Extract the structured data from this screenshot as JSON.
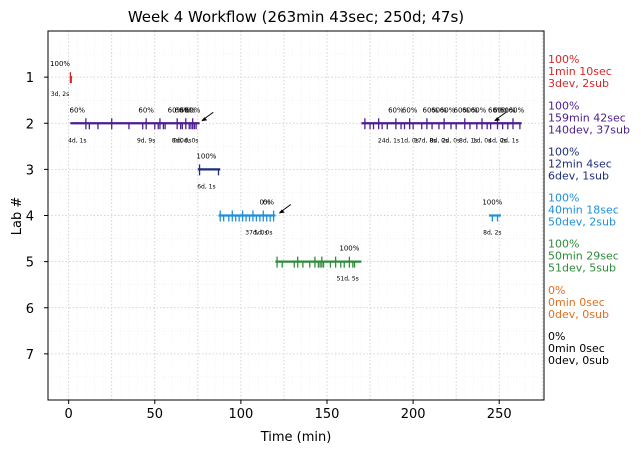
{
  "chart_data": {
    "type": "timeline",
    "title": "Week 4 Workflow (263min 43sec; 250d; 47s)",
    "xlabel": "Time (min)",
    "ylabel": "Lab #",
    "xlim": [
      -12,
      276
    ],
    "ylim": [
      8,
      0
    ],
    "x_ticks": [
      0,
      50,
      100,
      150,
      200,
      250
    ],
    "y_ticks": [
      1,
      2,
      3,
      4,
      5,
      6,
      7
    ],
    "grid": true,
    "lanes": [
      {
        "lab": 1,
        "color": "#d62728",
        "summary": [
          "100%",
          "1min 10sec",
          "3dev, 2sub"
        ],
        "segments": [
          [
            1,
            2
          ]
        ],
        "ticks": [
          1,
          1.5
        ],
        "pct_labels": [
          {
            "x": -5,
            "text": "100%"
          }
        ],
        "counts": [
          {
            "x": -5,
            "text": "3d, 2s"
          }
        ]
      },
      {
        "lab": 2,
        "color": "#4b1d8f",
        "summary": [
          "100%",
          "159min 42sec",
          "140dev, 37sub"
        ],
        "segments": [
          [
            1,
            76
          ],
          [
            170,
            263
          ]
        ],
        "ticks": [
          10,
          12,
          17,
          25,
          35,
          43,
          45,
          50,
          52,
          53,
          55,
          56,
          63,
          65,
          66,
          68,
          70,
          71,
          72,
          73,
          74,
          172,
          175,
          177,
          180,
          182,
          185,
          190,
          193,
          195,
          198,
          200,
          205,
          208,
          211,
          215,
          218,
          222,
          225,
          230,
          233,
          237,
          240,
          243,
          245,
          249,
          252,
          255,
          258,
          262
        ],
        "pct_labels": [
          {
            "x": 5,
            "text": "60%"
          },
          {
            "x": 45,
            "text": "60%"
          },
          {
            "x": 62,
            "text": "60%"
          },
          {
            "x": 66,
            "text": "60%"
          },
          {
            "x": 69,
            "text": "60%"
          },
          {
            "x": 72,
            "text": "60%"
          },
          {
            "x": 190,
            "text": "60%"
          },
          {
            "x": 198,
            "text": "60%"
          },
          {
            "x": 210,
            "text": "60%"
          },
          {
            "x": 215,
            "text": "60%"
          },
          {
            "x": 220,
            "text": "60%"
          },
          {
            "x": 228,
            "text": "60%"
          },
          {
            "x": 233,
            "text": "60%"
          },
          {
            "x": 238,
            "text": "60%"
          },
          {
            "x": 248,
            "text": "60%"
          },
          {
            "x": 251,
            "text": "60%"
          },
          {
            "x": 255,
            "text": "60%"
          },
          {
            "x": 260,
            "text": "60%"
          }
        ],
        "counts": [
          {
            "x": 5,
            "text": "4d, 1s"
          },
          {
            "x": 45,
            "text": "9d, 9s"
          },
          {
            "x": 62,
            "text": "0d"
          },
          {
            "x": 66,
            "text": "0d, 0s"
          },
          {
            "x": 70,
            "text": "0d, 0s"
          },
          {
            "x": 186,
            "text": "24d, 1s"
          },
          {
            "x": 198,
            "text": "1d, 0s"
          },
          {
            "x": 207,
            "text": "17d, 8s"
          },
          {
            "x": 215,
            "text": "8d, 0s"
          },
          {
            "x": 222,
            "text": "2d, 0s"
          },
          {
            "x": 232,
            "text": "8d, 1s"
          },
          {
            "x": 240,
            "text": "1d, 0s"
          },
          {
            "x": 249,
            "text": "4d, 0s"
          },
          {
            "x": 256,
            "text": "2d, 1s"
          }
        ],
        "arrows": [
          {
            "x": 77
          },
          {
            "x": 247
          }
        ]
      },
      {
        "lab": 3,
        "color": "#1f2e7a",
        "summary": [
          "100%",
          "12min 4sec",
          "6dev, 1sub"
        ],
        "segments": [
          [
            75,
            88
          ]
        ],
        "ticks": [
          76,
          87
        ],
        "pct_labels": [
          {
            "x": 80,
            "text": "100%"
          }
        ],
        "counts": [
          {
            "x": 80,
            "text": "6d, 1s"
          }
        ]
      },
      {
        "lab": 4,
        "color": "#1f8fdc",
        "summary": [
          "100%",
          "40min 18sec",
          "50dev, 2sub"
        ],
        "segments": [
          [
            87,
            120
          ],
          [
            244,
            251
          ]
        ],
        "ticks": [
          88,
          90,
          93,
          95,
          97,
          99,
          101,
          103,
          105,
          107,
          109,
          111,
          113,
          115,
          117,
          119,
          246,
          249
        ],
        "pct_labels": [
          {
            "x": 114,
            "text": "0%"
          },
          {
            "x": 116,
            "text": "0%"
          },
          {
            "x": 246,
            "text": "100%"
          }
        ],
        "counts": [
          {
            "x": 109,
            "text": "37d, 0s"
          },
          {
            "x": 113,
            "text": "5d, 0s"
          },
          {
            "x": 246,
            "text": "8d, 2s"
          }
        ],
        "arrows": [
          {
            "x": 122
          }
        ]
      },
      {
        "lab": 5,
        "color": "#2e8b3a",
        "summary": [
          "100%",
          "50min 29sec",
          "51dev, 5sub"
        ],
        "segments": [
          [
            120,
            170
          ]
        ],
        "ticks": [
          121,
          124,
          131,
          133,
          136,
          140,
          143,
          145,
          146,
          147,
          148,
          152,
          155,
          158,
          160,
          163,
          165,
          166
        ],
        "pct_labels": [
          {
            "x": 163,
            "text": "100%"
          }
        ],
        "counts": [
          {
            "x": 162,
            "text": "51d, 5s"
          }
        ]
      },
      {
        "lab": 6,
        "color": "#e07020",
        "summary": [
          "0%",
          "0min 0sec",
          "0dev, 0sub"
        ],
        "segments": [],
        "ticks": [],
        "pct_labels": [],
        "counts": []
      },
      {
        "lab": 7,
        "color": "#000000",
        "summary": [
          "0%",
          "0min 0sec",
          "0dev, 0sub"
        ],
        "segments": [],
        "ticks": [],
        "pct_labels": [],
        "counts": []
      }
    ]
  }
}
